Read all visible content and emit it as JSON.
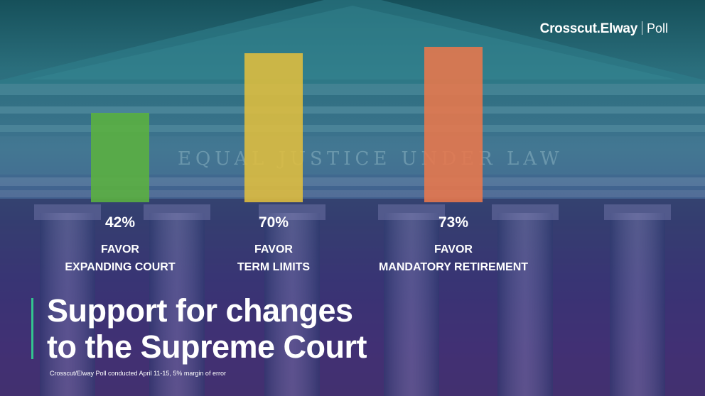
{
  "brand": {
    "name": "Crosscut.Elway",
    "suffix": "Poll"
  },
  "headline": {
    "line1": "Support for changes",
    "line2": "to the Supreme Court"
  },
  "footnote": "Crosscut/Elway Poll conducted April 11-15, 5% margin of error",
  "colors": {
    "expanding": "#5bb23f",
    "term_limits": "#e0be3e",
    "retirement": "#e9784b",
    "accent": "#34c38f"
  },
  "chart_data": {
    "type": "bar",
    "categories": [
      "FAVOR EXPANDING COURT",
      "FAVOR TERM LIMITS",
      "FAVOR MANDATORY RETIREMENT"
    ],
    "values": [
      42,
      70,
      73
    ],
    "data_labels": [
      "42%",
      "70%",
      "73%"
    ],
    "label_lines": [
      [
        "FAVOR",
        "EXPANDING COURT"
      ],
      [
        "FAVOR",
        "TERM LIMITS"
      ],
      [
        "FAVOR",
        "MANDATORY RETIREMENT"
      ]
    ],
    "bar_colors": [
      "#5bb23f",
      "#e0be3e",
      "#e9784b"
    ],
    "ylim": [
      0,
      100
    ],
    "unit": "%",
    "grid": false,
    "legend": "none"
  }
}
